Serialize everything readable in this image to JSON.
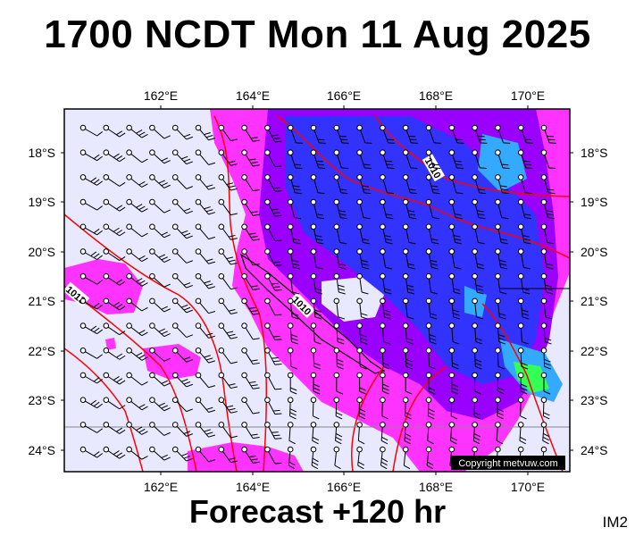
{
  "header": {
    "title": "1700 NCDT Mon 11 Aug 2025"
  },
  "footer": {
    "subtitle": "Forecast +120 hr",
    "corner": "IM2"
  },
  "map": {
    "copyright": "Copyright metvuw.com",
    "lon_labels": [
      "162°E",
      "164°E",
      "166°E",
      "168°E",
      "170°E"
    ],
    "lat_labels": [
      "18°S",
      "19°S",
      "20°S",
      "21°S",
      "22°S",
      "23°S",
      "24°S"
    ],
    "isobar_labels": [
      "1010",
      "1010",
      "1013"
    ],
    "colors": {
      "background": "#e8e8ff",
      "rain_light": "#ff33ff",
      "rain_mid": "#9900ff",
      "rain_heavy": "#3333ff",
      "rain_cyan": "#33aaff",
      "rain_green": "#33ff55",
      "isobar": "#ff0000",
      "frame": "#000000"
    }
  }
}
